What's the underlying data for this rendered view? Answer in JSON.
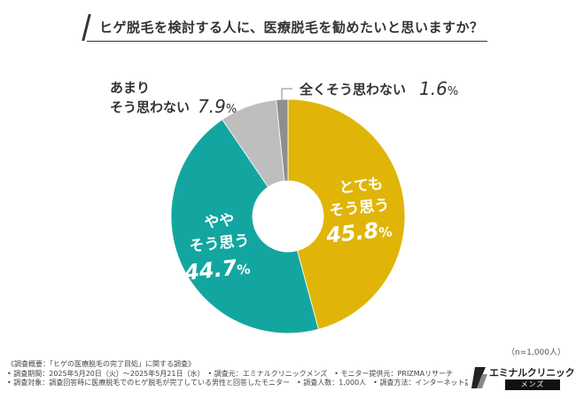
{
  "title": "ヒゲ脱毛を検討する人に、医療脱毛を勧めたいと思いますか？",
  "chart_data": {
    "type": "pie",
    "title": "ヒゲ脱毛を検討する人に、医療脱毛を勧めたいと思いますか？",
    "categories": [
      "とても そう思う",
      "やや そう思う",
      "あまり そう思わない",
      "全く そう思わない"
    ],
    "values": [
      45.8,
      44.7,
      7.9,
      1.6
    ],
    "unit": "%",
    "colors": [
      "#e0b508",
      "#13a6a0",
      "#bebebe",
      "#8e8e8e"
    ],
    "donut": true,
    "labels": {
      "very": {
        "line1": "とても",
        "line2": "そう思う",
        "value": "45.8",
        "unit": "%"
      },
      "somewhat": {
        "line1": "やや",
        "line2": "そう思う",
        "value": "44.7",
        "unit": "%"
      },
      "notmuch": {
        "line1": "あまり",
        "line2": "そう思わない",
        "value": "7.9",
        "unit": "%"
      },
      "notatall": {
        "line1": "全くそう思わない",
        "value": "1.6",
        "unit": "%"
      }
    }
  },
  "sample_size": "（n=1,000人）",
  "footer": {
    "line1": "《調査概要：「ヒゲの医療脱毛の完了目処」に関する調査》",
    "line2": "• 調査期間：2025年5月20日（火）～2025年5月21日（水）　• 調査元：エミナルクリニックメンズ　• モニター提供元：PRIZMAリサーチ",
    "line3": "• 調査対象：調査回答時に医療脱毛でのヒゲ脱毛が完了している男性と回答したモニター　• 調査人数：1,000人　• 調査方法：インターネット調査"
  },
  "logo": {
    "brand": "エミナルクリニック",
    "sub": "メンズ"
  }
}
